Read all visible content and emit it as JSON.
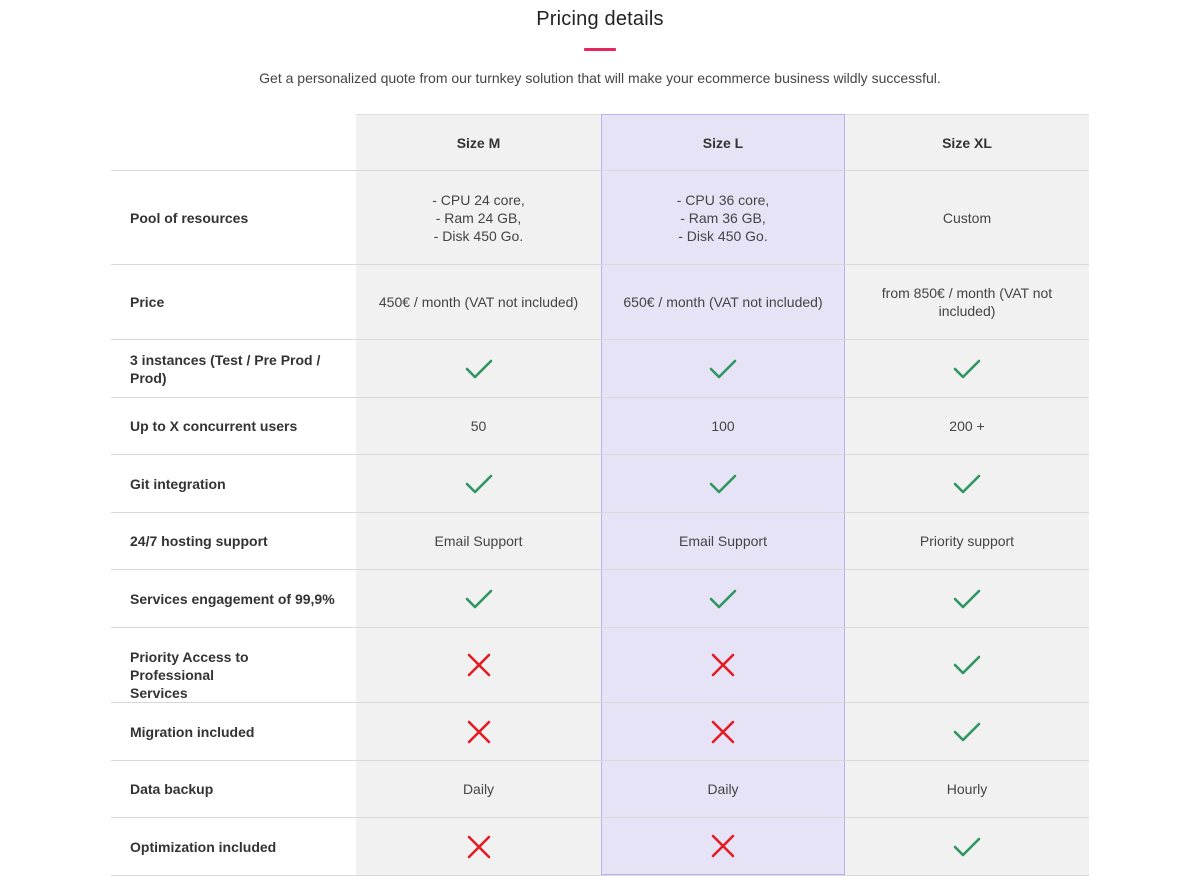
{
  "page": {
    "title": "Pricing details",
    "subtitle": "Get a personalized quote from our turnkey solution that will make your ecommerce business wildly successful."
  },
  "colors": {
    "accent": "#e6265f",
    "check": "#2e9660",
    "cross": "#e31b23",
    "highlight": "#e6e3f7"
  },
  "plans": [
    "Size M",
    "Size L",
    "Size XL"
  ],
  "rows": [
    {
      "label": "Pool of resources",
      "values": [
        {
          "type": "text",
          "text": "- CPU 24 core,\n- Ram 24 GB,\n- Disk 450 Go."
        },
        {
          "type": "text",
          "text": "- CPU 36 core,\n- Ram 36 GB,\n- Disk 450 Go."
        },
        {
          "type": "text",
          "text": "Custom"
        }
      ]
    },
    {
      "label": "Price",
      "values": [
        {
          "type": "text",
          "text": "450€ / month (VAT not included)"
        },
        {
          "type": "text",
          "text": "650€ / month (VAT not included)"
        },
        {
          "type": "text",
          "text": "from 850€ / month (VAT not\nincluded)"
        }
      ]
    },
    {
      "label": "3 instances (Test / Pre Prod / Prod)",
      "values": [
        {
          "type": "icon",
          "icon": "check-icon"
        },
        {
          "type": "icon",
          "icon": "check-icon"
        },
        {
          "type": "icon",
          "icon": "check-icon"
        }
      ]
    },
    {
      "label": "Up to X concurrent users",
      "values": [
        {
          "type": "text",
          "text": "50"
        },
        {
          "type": "text",
          "text": "100"
        },
        {
          "type": "text",
          "text": "200 +"
        }
      ]
    },
    {
      "label": "Git integration",
      "values": [
        {
          "type": "icon",
          "icon": "check-icon"
        },
        {
          "type": "icon",
          "icon": "check-icon"
        },
        {
          "type": "icon",
          "icon": "check-icon"
        }
      ]
    },
    {
      "label": "24/7 hosting support",
      "values": [
        {
          "type": "text",
          "text": "Email Support"
        },
        {
          "type": "text",
          "text": "Email Support"
        },
        {
          "type": "text",
          "text": "Priority support"
        }
      ]
    },
    {
      "label": "Services engagement of 99,9%",
      "values": [
        {
          "type": "icon",
          "icon": "check-icon"
        },
        {
          "type": "icon",
          "icon": "check-icon"
        },
        {
          "type": "icon",
          "icon": "check-icon"
        }
      ]
    },
    {
      "label": "Priority Access to Professional\nServices",
      "values": [
        {
          "type": "icon",
          "icon": "cross-icon"
        },
        {
          "type": "icon",
          "icon": "cross-icon"
        },
        {
          "type": "icon",
          "icon": "check-icon"
        }
      ]
    },
    {
      "label": "Migration included",
      "values": [
        {
          "type": "icon",
          "icon": "cross-icon"
        },
        {
          "type": "icon",
          "icon": "cross-icon"
        },
        {
          "type": "icon",
          "icon": "check-icon"
        }
      ]
    },
    {
      "label": "Data backup",
      "values": [
        {
          "type": "text",
          "text": "Daily"
        },
        {
          "type": "text",
          "text": "Daily"
        },
        {
          "type": "text",
          "text": "Hourly"
        }
      ]
    },
    {
      "label": "Optimization included",
      "values": [
        {
          "type": "icon",
          "icon": "cross-icon"
        },
        {
          "type": "icon",
          "icon": "cross-icon"
        },
        {
          "type": "icon",
          "icon": "check-icon"
        }
      ]
    }
  ]
}
